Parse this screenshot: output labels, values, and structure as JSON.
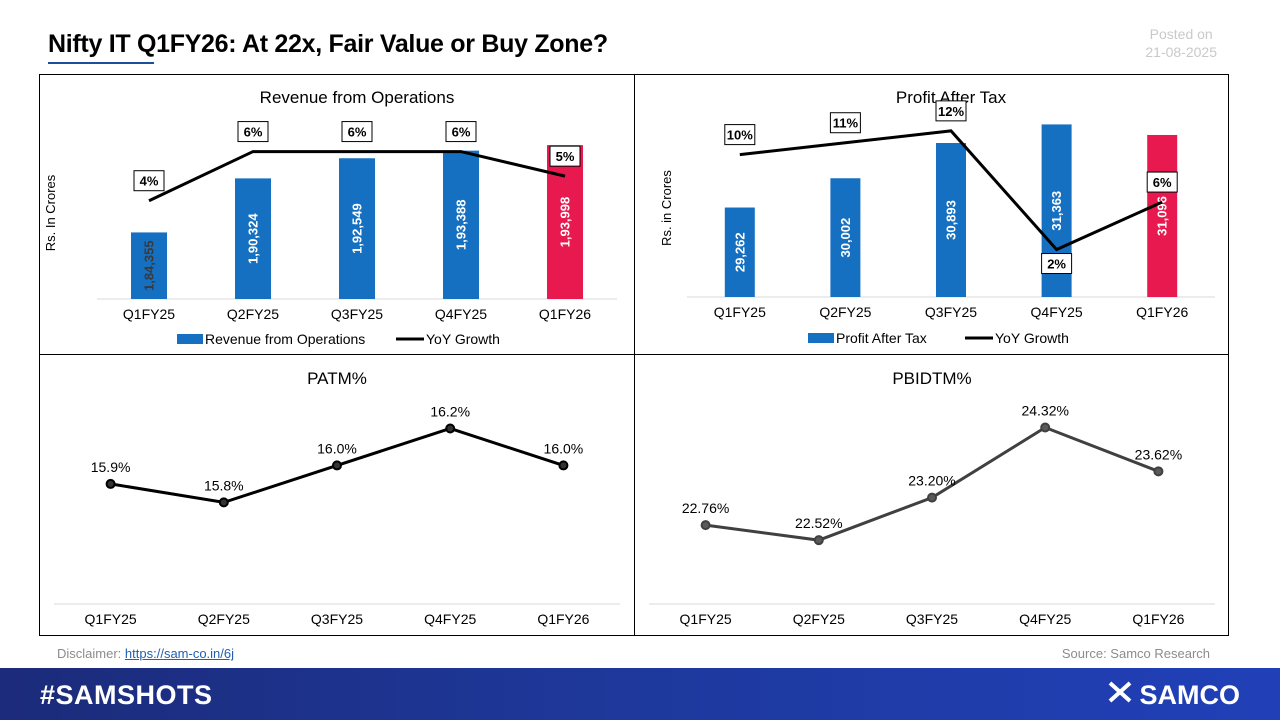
{
  "header": {
    "title": "Nifty IT Q1FY26: At 22x, Fair Value or Buy Zone?",
    "posted_label": "Posted on",
    "posted_date": "21-08-2025"
  },
  "footer": {
    "disclaimer_label": "Disclaimer:",
    "disclaimer_link": "https://sam-co.in/6j",
    "source": "Source: Samco Research",
    "hashtag": "#SAMSHOTS",
    "brand": "SAMCO",
    "brand_icon": "samco-logo-icon"
  },
  "colors": {
    "bar_blue": "#1670c2",
    "bar_highlight": "#e8194f",
    "line_black": "#000000",
    "line_grey": "#404040",
    "footer_blue": "#1e3aa0"
  },
  "chart_data": [
    {
      "type": "bar",
      "title": "Revenue from Operations",
      "ylabel": "Rs. In Crores",
      "categories": [
        "Q1FY25",
        "Q2FY25",
        "Q3FY25",
        "Q4FY25",
        "Q1FY26"
      ],
      "series": [
        {
          "name": "Revenue from Operations",
          "values": [
            184355,
            190324,
            192549,
            193388,
            193998
          ],
          "labels": [
            "1,84,355",
            "1,90,324",
            "1,92,549",
            "1,93,388",
            "1,93,998"
          ]
        },
        {
          "name": "YoY Growth",
          "type": "line",
          "values": [
            4,
            6,
            6,
            6,
            5
          ],
          "labels": [
            "4%",
            "6%",
            "6%",
            "6%",
            "5%"
          ]
        }
      ],
      "ylim": [
        177000,
        196000
      ],
      "y2lim": [
        0,
        7
      ],
      "legend": "bottom"
    },
    {
      "type": "bar",
      "title": "Profit After Tax",
      "ylabel": "Rs. in Crores",
      "categories": [
        "Q1FY25",
        "Q2FY25",
        "Q3FY25",
        "Q4FY25",
        "Q1FY26"
      ],
      "series": [
        {
          "name": "Profit After Tax",
          "values": [
            29262,
            30002,
            30893,
            31363,
            31096
          ],
          "labels": [
            "29,262",
            "30,002",
            "30,893",
            "31,363",
            "31,096"
          ]
        },
        {
          "name": "YoY Growth",
          "type": "line",
          "values": [
            10,
            11,
            12,
            2,
            6
          ],
          "labels": [
            "10%",
            "11%",
            "12%",
            "2%",
            "6%"
          ]
        }
      ],
      "ylim": [
        27000,
        31500
      ],
      "y2lim": [
        -2,
        13
      ],
      "legend": "bottom"
    },
    {
      "type": "line",
      "title": "PATM%",
      "categories": [
        "Q1FY25",
        "Q2FY25",
        "Q3FY25",
        "Q4FY25",
        "Q1FY26"
      ],
      "series": [
        {
          "name": "",
          "values": [
            15.9,
            15.8,
            16.0,
            16.2,
            16.0
          ],
          "labels": [
            "15.9%",
            "15.8%",
            "16.0%",
            "16.2%",
            "16.0%"
          ]
        }
      ],
      "ylim": [
        15.25,
        16.3
      ]
    },
    {
      "type": "line",
      "title": "PBIDTM%",
      "categories": [
        "Q1FY25",
        "Q2FY25",
        "Q3FY25",
        "Q4FY25",
        "Q1FY26"
      ],
      "series": [
        {
          "name": "",
          "values": [
            22.76,
            22.52,
            23.2,
            24.32,
            23.62
          ],
          "labels": [
            "22.76%",
            "22.52%",
            "23.20%",
            "24.32%",
            "23.62%"
          ]
        }
      ],
      "ylim": [
        21.5,
        24.6
      ]
    }
  ]
}
